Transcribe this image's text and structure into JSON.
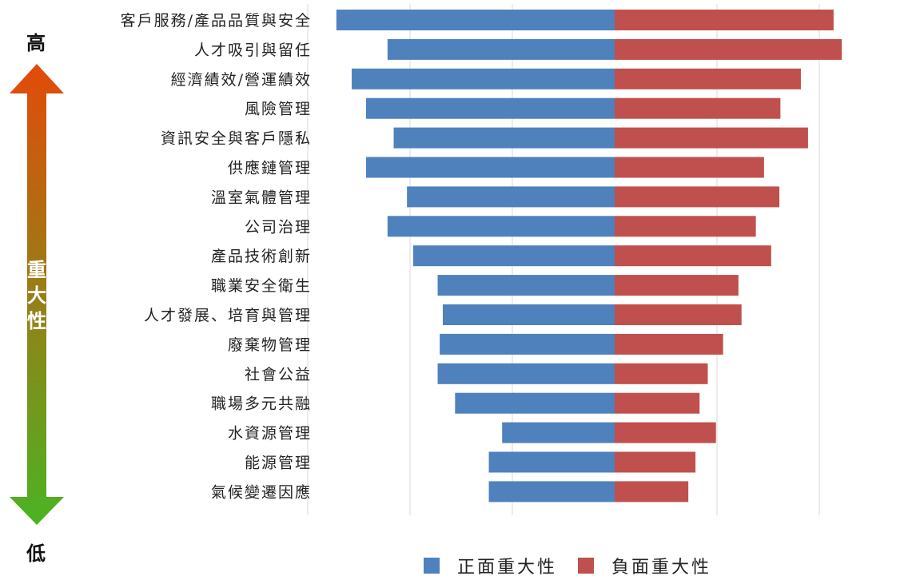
{
  "chart_data": {
    "type": "bar",
    "orientation": "horizontal-diverging",
    "categories": [
      "客戶服務/產品品質與安全",
      "人才吸引與留任",
      "經濟績效/營運績效",
      "風險管理",
      "資訊安全與客戶隱私",
      "供應鏈管理",
      "溫室氣體管理",
      "公司治理",
      "產品技術創新",
      "職業安全衛生",
      "人才發展、培育與管理",
      "廢棄物管理",
      "社會公益",
      "職場多元共融",
      "水資源管理",
      "能源管理",
      "氣候變遷因應"
    ],
    "series": [
      {
        "name": "正面重大性",
        "color": "#4f81bd",
        "values": [
          2.72,
          2.22,
          2.57,
          2.43,
          2.16,
          2.43,
          2.03,
          2.22,
          1.97,
          1.73,
          1.68,
          1.71,
          1.73,
          1.56,
          1.1,
          1.23,
          1.23
        ]
      },
      {
        "name": "負面重大性",
        "color": "#c0504d",
        "values": [
          2.14,
          2.22,
          1.82,
          1.62,
          1.89,
          1.46,
          1.61,
          1.38,
          1.53,
          1.21,
          1.24,
          1.06,
          0.91,
          0.83,
          0.99,
          0.79,
          0.72
        ]
      }
    ],
    "xlim": [
      -3,
      3
    ],
    "grid": true,
    "legend_position": "bottom",
    "importance_axis": {
      "top_label": "高",
      "bottom_label": "低",
      "mid_label": "重大性",
      "gradient": [
        "#e34a0a",
        "#4bb323"
      ]
    }
  }
}
